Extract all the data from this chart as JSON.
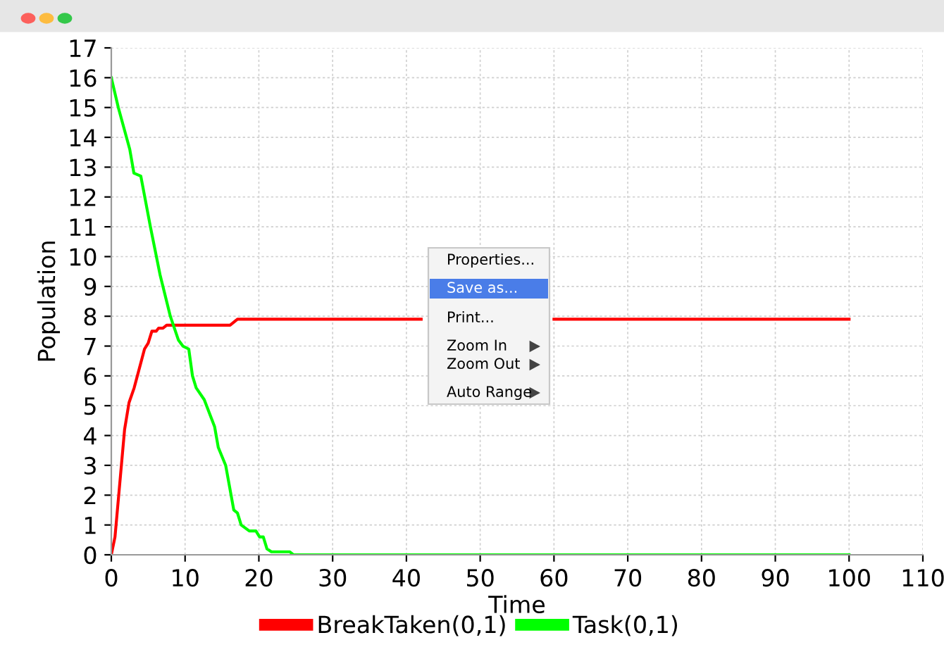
{
  "chart_data": {
    "type": "line",
    "xlabel": "Time",
    "ylabel": "Population",
    "xlim": [
      0,
      110
    ],
    "xticks": [
      0,
      10,
      20,
      30,
      40,
      50,
      60,
      70,
      80,
      90,
      100,
      110
    ],
    "ylim": [
      0,
      17
    ],
    "yticks": [
      0,
      1,
      2,
      3,
      4,
      5,
      6,
      7,
      8,
      9,
      10,
      11,
      12,
      13,
      14,
      15,
      16,
      17
    ],
    "grid": true,
    "legend": "bottom",
    "marker": "none",
    "line_style": "solid",
    "series": [
      {
        "name": "BreakTaken(0,1)",
        "color": "#ff0000",
        "x": [
          0,
          0.5,
          1.8,
          2.4,
          3.1,
          4.5,
          5.0,
          5.5,
          6.1,
          6.4,
          7.0,
          7.5,
          16.1,
          17.1,
          42,
          50,
          60,
          100
        ],
        "values": [
          0,
          0.6,
          4.2,
          5.1,
          5.6,
          6.9,
          7.1,
          7.5,
          7.5,
          7.6,
          7.6,
          7.7,
          7.7,
          7.9,
          7.9,
          null,
          7.9,
          7.9
        ]
      },
      {
        "name": "Task(0,1)",
        "color": "#00ff00",
        "x": [
          0,
          0.95,
          2.5,
          3.06,
          4.0,
          5.3,
          6.6,
          8.0,
          9.1,
          9.7,
          10.5,
          11.0,
          11.5,
          12.6,
          14.0,
          14.5,
          15.5,
          16.6,
          17.1,
          17.6,
          18.7,
          19.6,
          20.1,
          20.6,
          21.1,
          21.7,
          24.2,
          24.7,
          100
        ],
        "values": [
          16,
          15,
          13.6,
          12.8,
          12.7,
          11,
          9.4,
          8,
          7.2,
          7,
          6.9,
          6,
          5.6,
          5.2,
          4.3,
          3.6,
          3,
          1.5,
          1.4,
          1,
          0.8,
          0.8,
          0.6,
          0.6,
          0.2,
          0.1,
          0.1,
          0,
          0
        ]
      }
    ],
    "annotations": [
      "Properties...",
      "Save as...",
      "Print...",
      "Zoom In",
      "Zoom Out",
      "Auto Range"
    ]
  }
}
